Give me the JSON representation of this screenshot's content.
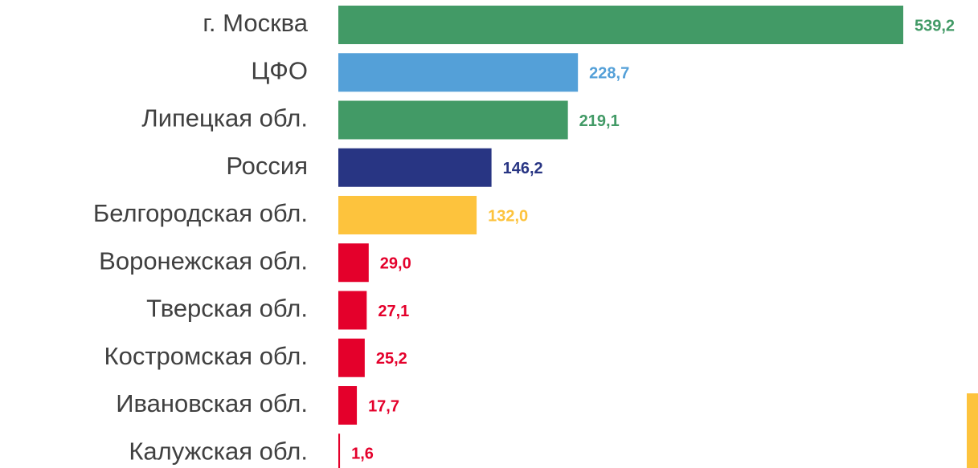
{
  "chart_data": {
    "type": "bar",
    "orientation": "horizontal",
    "categories": [
      "г. Москва",
      "ЦФО",
      "Липецкая обл.",
      "Россия",
      "Белгородская обл.",
      "Воронежская обл.",
      "Тверская обл.",
      "Костромская обл.",
      "Ивановская обл.",
      "Калужская обл."
    ],
    "values": [
      539.2,
      228.7,
      219.1,
      146.2,
      132.0,
      29.0,
      27.1,
      25.2,
      17.7,
      1.6
    ],
    "value_labels": [
      "539,2",
      "228,7",
      "219,1",
      "146,2",
      "132,0",
      "29,0",
      "27,1",
      "25,2",
      "17,7",
      "1,6"
    ],
    "colors": [
      "#429a66",
      "#54a0d8",
      "#429a66",
      "#283583",
      "#fdc33d",
      "#e4002b",
      "#e4002b",
      "#e4002b",
      "#e4002b",
      "#e4002b"
    ]
  }
}
